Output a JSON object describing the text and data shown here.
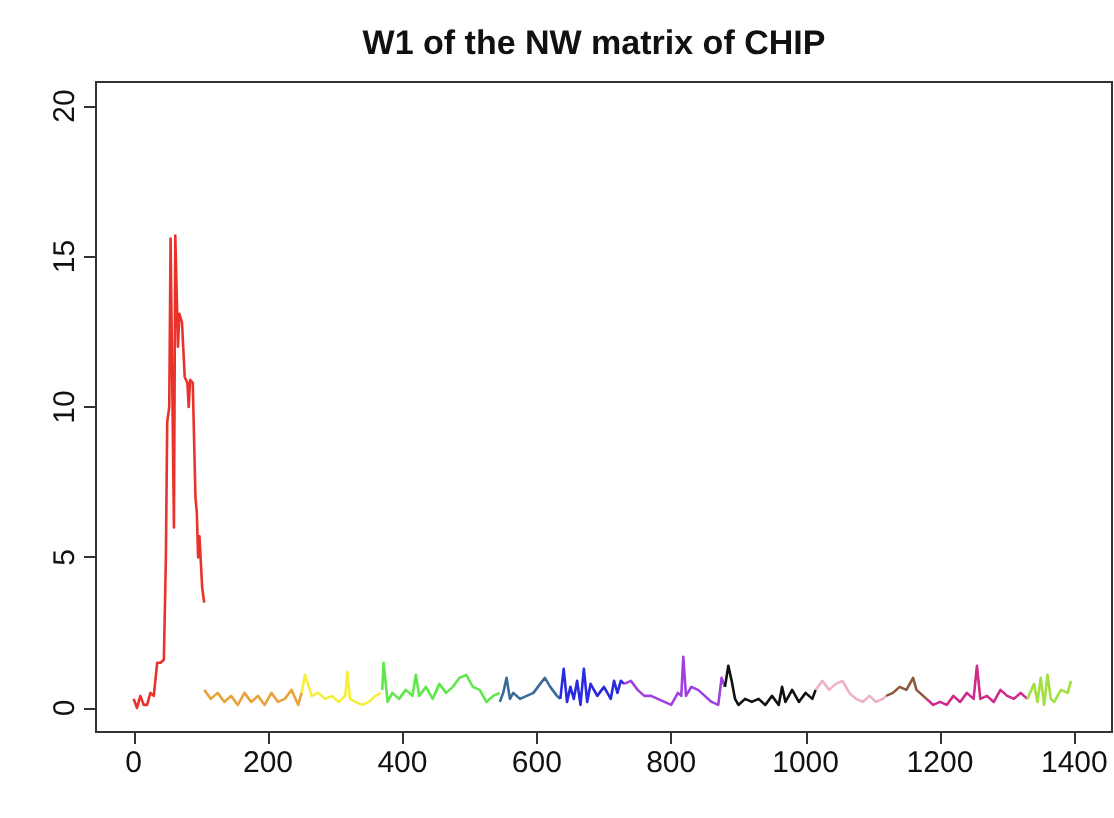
{
  "chart_data": {
    "type": "line",
    "title": "W1 of the NW matrix of CHIP",
    "xlim": [
      -56,
      1456
    ],
    "xticks": [
      0,
      200,
      400,
      600,
      800,
      1000,
      1200,
      1400
    ],
    "ylim": [
      -0.8,
      20.8
    ],
    "yticks": [
      0,
      5,
      10,
      15,
      20
    ],
    "grid": false,
    "marker": "none",
    "line_style": "solid",
    "series": [
      {
        "color": "#e8322a",
        "x": [
          0,
          5,
          10,
          15,
          20,
          25,
          30,
          35,
          40,
          45,
          48,
          50,
          53,
          55,
          57,
          60,
          62,
          64,
          66,
          68,
          72,
          76,
          80,
          82,
          84,
          88,
          92,
          94,
          96,
          98,
          102,
          105
        ],
        "values": [
          0.3,
          0,
          0.4,
          0.1,
          0.1,
          0.5,
          0.4,
          1.5,
          1.5,
          1.6,
          5,
          9.5,
          10,
          15.6,
          15.6,
          6,
          15.7,
          15.7,
          12,
          13.1,
          12.8,
          11,
          10.8,
          10,
          10.9,
          10.8,
          7,
          6.5,
          5,
          5.7,
          4,
          3.5
        ]
      },
      {
        "color": "#e8a33c",
        "x": [
          105,
          115,
          125,
          135,
          145,
          155,
          165,
          175,
          185,
          195,
          205,
          215,
          225,
          235,
          245,
          250
        ],
        "values": [
          0.6,
          0.3,
          0.5,
          0.2,
          0.4,
          0.1,
          0.5,
          0.2,
          0.4,
          0.1,
          0.5,
          0.2,
          0.3,
          0.6,
          0.1,
          0.5
        ]
      },
      {
        "color": "#f5ee3a",
        "x": [
          250,
          255,
          265,
          275,
          285,
          295,
          305,
          315,
          318,
          322,
          330,
          340,
          350,
          360,
          368
        ],
        "values": [
          0.5,
          1.1,
          0.4,
          0.5,
          0.3,
          0.4,
          0.2,
          0.4,
          1.2,
          0.3,
          0.2,
          0.1,
          0.2,
          0.4,
          0.5
        ]
      },
      {
        "color": "#5ee84a",
        "x": [
          370,
          372,
          378,
          385,
          395,
          405,
          415,
          420,
          425,
          435,
          445,
          455,
          465,
          475,
          485,
          495,
          505,
          515,
          525,
          535,
          545
        ],
        "values": [
          0.6,
          1.5,
          0.2,
          0.5,
          0.3,
          0.6,
          0.4,
          1.1,
          0.4,
          0.7,
          0.3,
          0.8,
          0.5,
          0.7,
          1.0,
          1.1,
          0.7,
          0.6,
          0.2,
          0.4,
          0.5
        ]
      },
      {
        "color": "#3a6a9a",
        "x": [
          545,
          550,
          555,
          560,
          565,
          575,
          585,
          595,
          605,
          612,
          620,
          630,
          635
        ],
        "values": [
          0.2,
          0.5,
          1.0,
          0.3,
          0.5,
          0.3,
          0.4,
          0.5,
          0.8,
          1.0,
          0.7,
          0.4,
          0.3
        ]
      },
      {
        "color": "#2a2ae0",
        "x": [
          635,
          640,
          645,
          650,
          655,
          660,
          665,
          670,
          675,
          680,
          690,
          700,
          710,
          715,
          720,
          725,
          730
        ],
        "values": [
          0.3,
          1.3,
          0.2,
          0.7,
          0.3,
          0.9,
          0.1,
          1.3,
          0.2,
          0.8,
          0.4,
          0.7,
          0.3,
          0.9,
          0.5,
          0.9,
          0.8
        ]
      },
      {
        "color": "#a040e0",
        "x": [
          730,
          740,
          750,
          760,
          770,
          780,
          790,
          800,
          810,
          815,
          818,
          822,
          830,
          840,
          850,
          860,
          870,
          875,
          880
        ],
        "values": [
          0.8,
          0.9,
          0.6,
          0.4,
          0.4,
          0.3,
          0.2,
          0.1,
          0.5,
          0.4,
          1.7,
          0.4,
          0.7,
          0.6,
          0.4,
          0.2,
          0.1,
          1.0,
          0.7
        ]
      },
      {
        "color": "#111111",
        "x": [
          880,
          885,
          890,
          895,
          900,
          910,
          920,
          930,
          940,
          950,
          960,
          965,
          970,
          980,
          990,
          1000,
          1010,
          1015
        ],
        "values": [
          0.7,
          1.4,
          0.9,
          0.3,
          0.1,
          0.3,
          0.2,
          0.3,
          0.1,
          0.4,
          0.1,
          0.7,
          0.2,
          0.6,
          0.2,
          0.5,
          0.3,
          0.6
        ]
      },
      {
        "color": "#f0b0c8",
        "x": [
          1015,
          1025,
          1035,
          1045,
          1055,
          1065,
          1075,
          1085,
          1095,
          1105,
          1115,
          1120
        ],
        "values": [
          0.6,
          0.9,
          0.6,
          0.8,
          0.9,
          0.5,
          0.3,
          0.2,
          0.4,
          0.2,
          0.3,
          0.4
        ]
      },
      {
        "color": "#8a5a3a",
        "x": [
          1120,
          1130,
          1140,
          1150,
          1160,
          1165,
          1170,
          1180
        ],
        "values": [
          0.4,
          0.5,
          0.7,
          0.6,
          1.0,
          0.6,
          0.5,
          0.3
        ]
      },
      {
        "color": "#d02a8a",
        "x": [
          1180,
          1190,
          1200,
          1210,
          1220,
          1230,
          1240,
          1250,
          1255,
          1260,
          1270,
          1280,
          1290,
          1300,
          1310,
          1320,
          1330
        ],
        "values": [
          0.3,
          0.1,
          0.2,
          0.1,
          0.4,
          0.2,
          0.5,
          0.3,
          1.4,
          0.3,
          0.4,
          0.2,
          0.6,
          0.4,
          0.3,
          0.5,
          0.3
        ]
      },
      {
        "color": "#a0e040",
        "x": [
          1330,
          1340,
          1345,
          1350,
          1355,
          1360,
          1365,
          1370,
          1380,
          1390,
          1395
        ],
        "values": [
          0.3,
          0.8,
          0.2,
          1.0,
          0.1,
          1.1,
          0.3,
          0.2,
          0.6,
          0.5,
          0.9
        ]
      }
    ]
  }
}
